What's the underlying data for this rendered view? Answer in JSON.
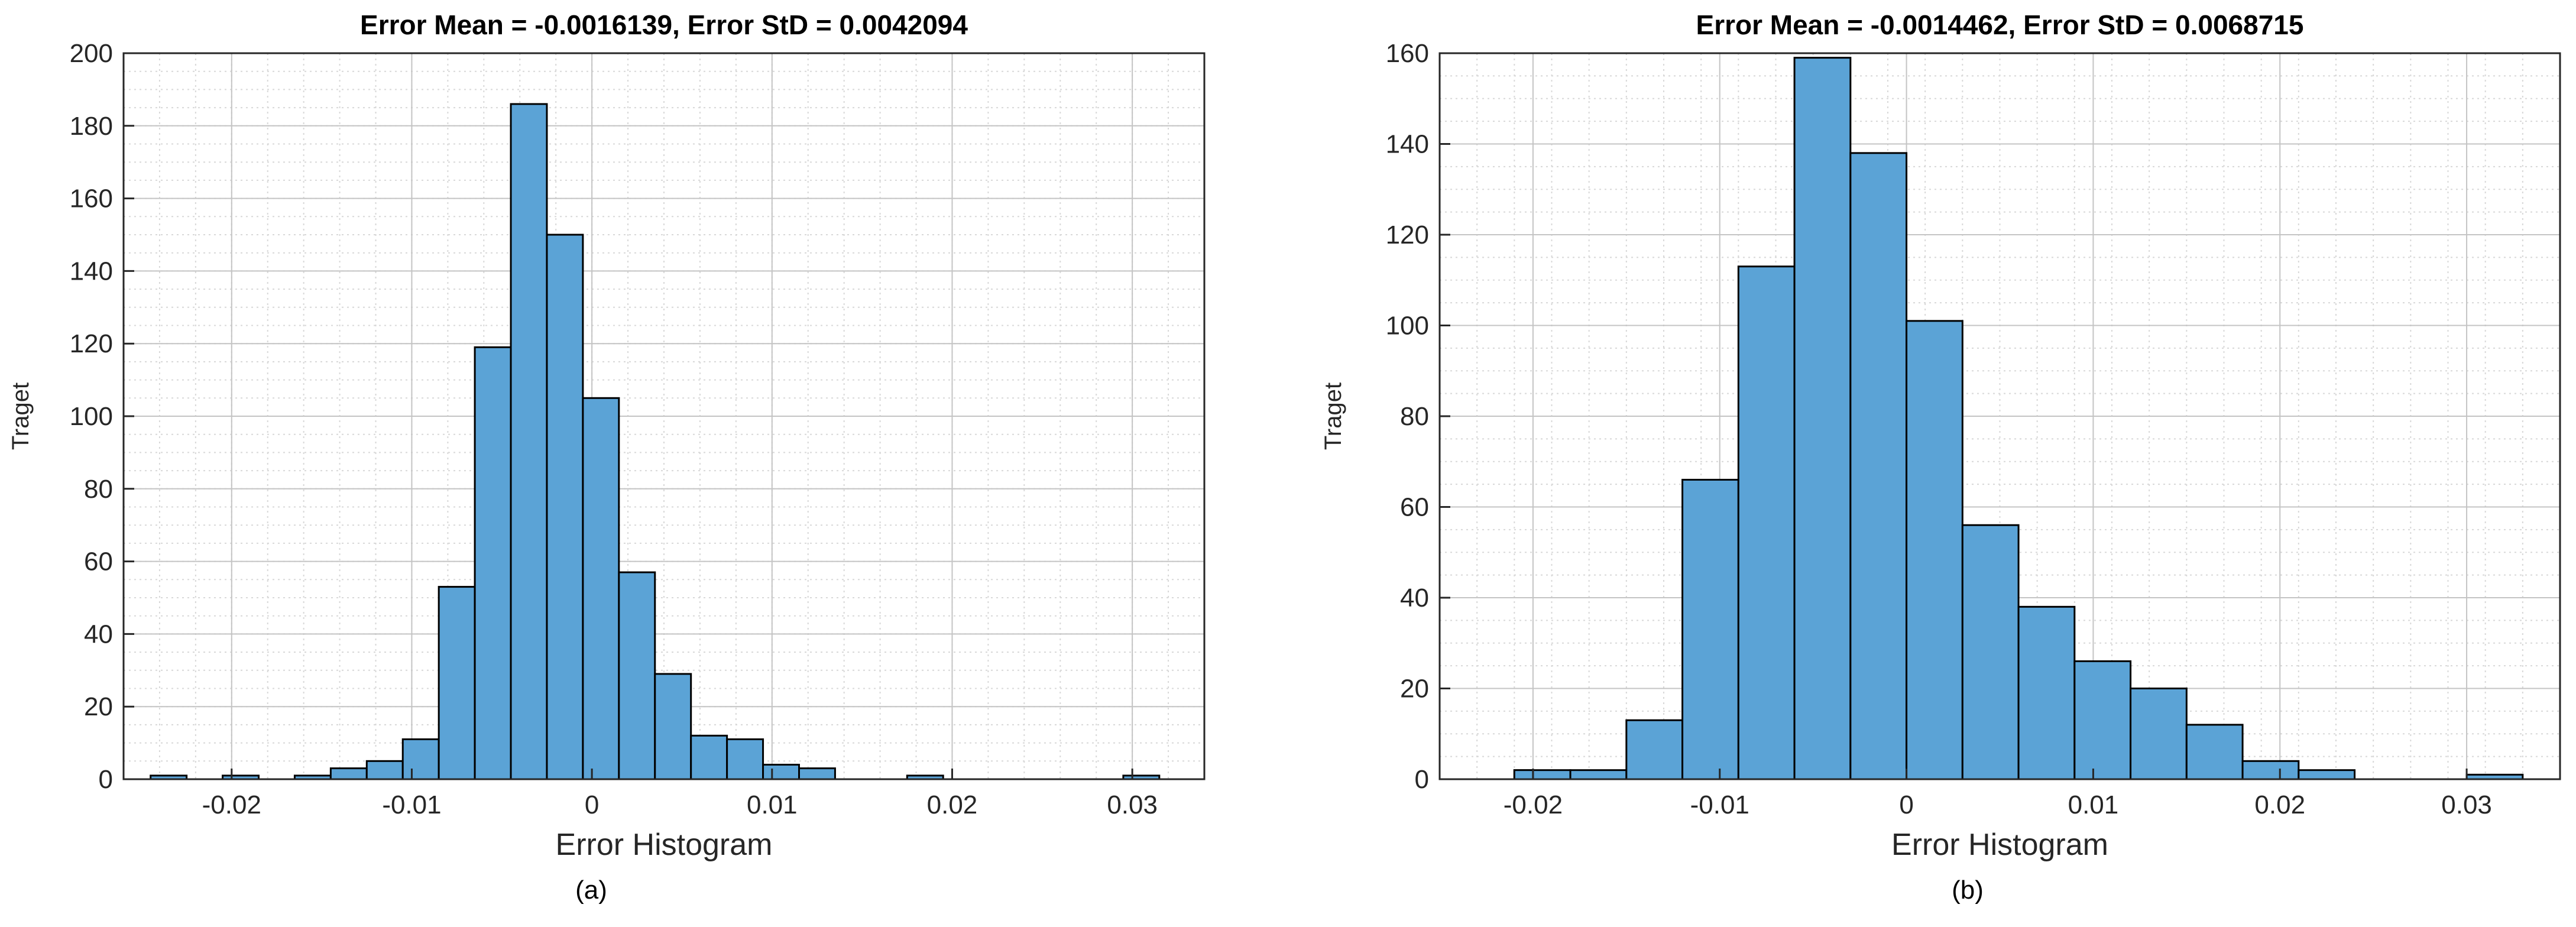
{
  "chart_data": [
    {
      "type": "bar",
      "title": "Error Mean = -0.0016139, Error StD = 0.0042094",
      "xlabel": "Error Histogram",
      "ylabel": "Traget",
      "caption": "(a)",
      "xlim": [
        -0.026,
        0.034
      ],
      "ylim": [
        0,
        200
      ],
      "xticks": [
        -0.02,
        -0.01,
        0,
        0.01,
        0.02,
        0.03
      ],
      "xtick_labels": [
        "-0.02",
        "-0.01",
        "0",
        "0.01",
        "0.02",
        "0.03"
      ],
      "yticks": [
        0,
        20,
        40,
        60,
        80,
        100,
        120,
        140,
        160,
        180,
        200
      ],
      "yticks_labels": [
        "0",
        "20",
        "40",
        "60",
        "80",
        "100",
        "120",
        "140",
        "160",
        "180",
        "200"
      ],
      "grid": true,
      "bar_color": "#5ba3d6",
      "bin_width": 0.002,
      "bins": [
        {
          "x": -0.0235,
          "y": 1
        },
        {
          "x": -0.0215,
          "y": 0
        },
        {
          "x": -0.0195,
          "y": 1
        },
        {
          "x": -0.0175,
          "y": 0
        },
        {
          "x": -0.0155,
          "y": 1
        },
        {
          "x": -0.0135,
          "y": 3
        },
        {
          "x": -0.0115,
          "y": 5
        },
        {
          "x": -0.0095,
          "y": 11
        },
        {
          "x": -0.0075,
          "y": 53
        },
        {
          "x": -0.0055,
          "y": 119
        },
        {
          "x": -0.0035,
          "y": 186
        },
        {
          "x": -0.0015,
          "y": 150
        },
        {
          "x": 0.0005,
          "y": 105
        },
        {
          "x": 0.0025,
          "y": 57
        },
        {
          "x": 0.0045,
          "y": 29
        },
        {
          "x": 0.0065,
          "y": 12
        },
        {
          "x": 0.0085,
          "y": 11
        },
        {
          "x": 0.0105,
          "y": 4
        },
        {
          "x": 0.0125,
          "y": 3
        },
        {
          "x": 0.0145,
          "y": 0
        },
        {
          "x": 0.0165,
          "y": 0
        },
        {
          "x": 0.0185,
          "y": 1
        },
        {
          "x": 0.0205,
          "y": 0
        },
        {
          "x": 0.0225,
          "y": 0
        },
        {
          "x": 0.0245,
          "y": 0
        },
        {
          "x": 0.0265,
          "y": 0
        },
        {
          "x": 0.0285,
          "y": 0
        },
        {
          "x": 0.0305,
          "y": 1
        }
      ]
    },
    {
      "type": "bar",
      "title": "Error Mean = -0.0014462, Error StD = 0.0068715",
      "xlabel": "Error Histogram",
      "ylabel": "Traget",
      "caption": "(b)",
      "xlim": [
        -0.025,
        0.035
      ],
      "ylim": [
        0,
        160
      ],
      "xticks": [
        -0.02,
        -0.01,
        0,
        0.01,
        0.02,
        0.03
      ],
      "xtick_labels": [
        "-0.02",
        "-0.01",
        "0",
        "0.01",
        "0.02",
        "0.03"
      ],
      "yticks": [
        0,
        20,
        40,
        60,
        80,
        100,
        120,
        140,
        160
      ],
      "yticks_labels": [
        "0",
        "20",
        "40",
        "60",
        "80",
        "100",
        "120",
        "140",
        "160"
      ],
      "grid": true,
      "bar_color": "#5ba3d6",
      "bin_width": 0.003,
      "bins": [
        {
          "x": -0.0195,
          "y": 2
        },
        {
          "x": -0.0165,
          "y": 2
        },
        {
          "x": -0.0135,
          "y": 13
        },
        {
          "x": -0.0105,
          "y": 66
        },
        {
          "x": -0.0075,
          "y": 113
        },
        {
          "x": -0.0045,
          "y": 159
        },
        {
          "x": -0.0015,
          "y": 138
        },
        {
          "x": 0.0015,
          "y": 101
        },
        {
          "x": 0.0045,
          "y": 56
        },
        {
          "x": 0.0075,
          "y": 38
        },
        {
          "x": 0.0105,
          "y": 26
        },
        {
          "x": 0.0135,
          "y": 20
        },
        {
          "x": 0.0165,
          "y": 12
        },
        {
          "x": 0.0195,
          "y": 4
        },
        {
          "x": 0.0225,
          "y": 2
        },
        {
          "x": 0.0255,
          "y": 0
        },
        {
          "x": 0.0285,
          "y": 0
        },
        {
          "x": 0.0315,
          "y": 1
        }
      ],
      "extra_bins": [
        {
          "x": -0.0205,
          "w": 0.001,
          "y": 2
        }
      ]
    }
  ]
}
